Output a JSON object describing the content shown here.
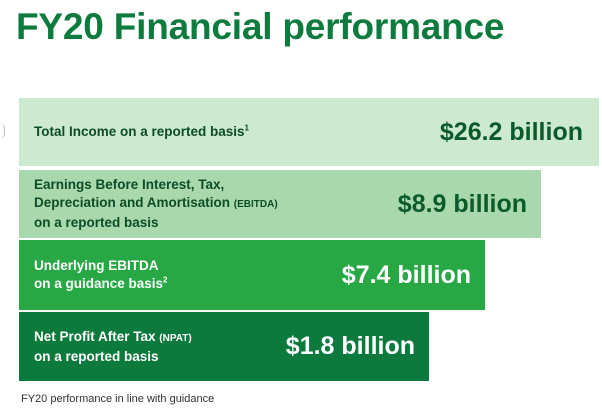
{
  "header": {
    "title": "FY20 Financial performance"
  },
  "bars": [
    {
      "label_lines": [
        "Total Income on a reported basis"
      ],
      "superscript": "1",
      "value": "$26.2 billion"
    },
    {
      "label_line1": "Earnings Before Interest, Tax,",
      "label_line2": "Depreciation and Amortisation",
      "label_line2_small": "(EBITDA)",
      "label_line3": "on a reported basis",
      "value": "$8.9 billion"
    },
    {
      "label_line1": "Underlying EBITDA",
      "label_line2": "on a guidance basis",
      "superscript": "2",
      "value": "$7.4 billion"
    },
    {
      "label_line1": "Net Profit After Tax",
      "label_line1_small": "(NPAT)",
      "label_line2": "on a reported basis",
      "value": "$1.8 billion"
    }
  ],
  "footnote": "FY20 performance in line with guidance",
  "colors": {
    "title": "#0d7a3e",
    "bar1": "#cde9cf",
    "bar2": "#a9d8ad",
    "bar3": "#28a745",
    "bar4": "#0b7a3c"
  }
}
